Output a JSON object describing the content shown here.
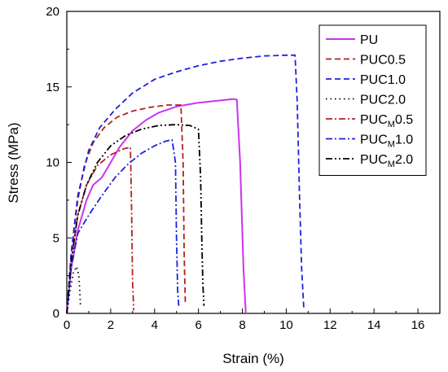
{
  "chart_data": {
    "type": "line",
    "title": "",
    "xlabel": "Strain (%)",
    "ylabel": "Stress (MPa)",
    "xlim": [
      0,
      17
    ],
    "ylim": [
      0,
      20
    ],
    "xticks": [
      0,
      2,
      4,
      6,
      8,
      10,
      12,
      14,
      16
    ],
    "yticks": [
      0,
      5,
      10,
      15,
      20
    ],
    "grid": false,
    "legend_position": "top-right",
    "series": [
      {
        "name": "PU",
        "style": "solid",
        "color": "#cc33ee",
        "x": [
          0,
          0.2,
          0.5,
          0.9,
          1.2,
          1.6,
          2.0,
          2.4,
          3.0,
          3.6,
          4.2,
          5.0,
          6.0,
          7.0,
          7.6,
          7.75,
          7.9,
          8.05,
          8.15,
          8.15
        ],
        "y": [
          0,
          3.0,
          5.5,
          7.5,
          8.5,
          9.0,
          10.0,
          11.0,
          12.1,
          12.8,
          13.3,
          13.7,
          13.95,
          14.1,
          14.2,
          14.15,
          10.0,
          3.0,
          0.2,
          0
        ]
      },
      {
        "name": "PUC0.5",
        "style": "dashed",
        "color": "#b22222",
        "x": [
          0,
          0.2,
          0.5,
          0.8,
          1.2,
          1.7,
          2.3,
          3.0,
          3.8,
          4.6,
          5.2,
          5.3,
          5.35,
          5.4
        ],
        "y": [
          0,
          4.0,
          7.5,
          9.8,
          11.3,
          12.3,
          13.0,
          13.4,
          13.65,
          13.8,
          13.8,
          10.0,
          4.0,
          0.7
        ]
      },
      {
        "name": "PUC1.0",
        "style": "dashed",
        "color": "#2020e0",
        "x": [
          0,
          0.2,
          0.5,
          1.0,
          1.5,
          2.2,
          3.0,
          4.0,
          5.0,
          6.0,
          7.0,
          8.0,
          9.0,
          10.0,
          10.4,
          10.5,
          10.6,
          10.7,
          10.8
        ],
        "y": [
          0,
          4.0,
          7.8,
          10.8,
          12.3,
          13.5,
          14.6,
          15.5,
          16.0,
          16.4,
          16.7,
          16.9,
          17.05,
          17.1,
          17.1,
          14.0,
          8.0,
          3.0,
          0.3
        ]
      },
      {
        "name": "PUC2.0",
        "style": "dotted",
        "color": "#000000",
        "x": [
          0,
          0.15,
          0.3,
          0.45,
          0.55,
          0.6,
          0.62
        ],
        "y": [
          0,
          1.5,
          2.7,
          3.1,
          2.5,
          1.2,
          0.6
        ]
      },
      {
        "name": "PUC_M0.5",
        "style": "dashdot",
        "color": "#b22222",
        "x": [
          0,
          0.2,
          0.5,
          0.9,
          1.4,
          2.0,
          2.6,
          2.9,
          2.95,
          3.0,
          3.05
        ],
        "y": [
          0,
          3.5,
          6.5,
          8.5,
          9.8,
          10.5,
          10.9,
          11.0,
          7.0,
          2.0,
          0.2
        ]
      },
      {
        "name": "PUC_M1.0",
        "style": "dashdot",
        "color": "#2020e0",
        "x": [
          0,
          0.2,
          0.5,
          1.0,
          1.6,
          2.2,
          2.8,
          3.4,
          4.0,
          4.5,
          4.8,
          4.95,
          5.0,
          5.05,
          5.1
        ],
        "y": [
          0,
          3.0,
          5.3,
          6.5,
          7.8,
          9.0,
          9.9,
          10.6,
          11.1,
          11.4,
          11.5,
          10.0,
          5.0,
          1.5,
          0.5
        ]
      },
      {
        "name": "PUC_M2.0",
        "style": "dashdotdot",
        "color": "#000000",
        "x": [
          0,
          0.2,
          0.5,
          0.9,
          1.4,
          2.0,
          2.7,
          3.4,
          4.2,
          5.0,
          5.6,
          6.0,
          6.1,
          6.15,
          6.2,
          6.25
        ],
        "y": [
          0,
          3.5,
          6.5,
          8.5,
          10.0,
          11.1,
          11.8,
          12.2,
          12.45,
          12.5,
          12.45,
          12.2,
          9.0,
          5.0,
          2.0,
          0.5
        ]
      }
    ],
    "legend": [
      {
        "base": "PUC",
        "sub": "",
        "rest": "",
        "label": "PU",
        "series": "PU"
      },
      {
        "base": "",
        "sub": "",
        "rest": "",
        "label": "PUC0.5",
        "series": "PUC0.5"
      },
      {
        "base": "",
        "sub": "",
        "rest": "",
        "label": "PUC1.0",
        "series": "PUC1.0"
      },
      {
        "base": "",
        "sub": "",
        "rest": "",
        "label": "PUC2.0",
        "series": "PUC2.0"
      },
      {
        "base": "PUC",
        "sub": "M",
        "rest": "0.5",
        "label": "",
        "series": "PUC_M0.5"
      },
      {
        "base": "PUC",
        "sub": "M",
        "rest": "1.0",
        "label": "",
        "series": "PUC_M1.0"
      },
      {
        "base": "PUC",
        "sub": "M",
        "rest": "2.0",
        "label": "",
        "series": "PUC_M2.0"
      }
    ]
  }
}
